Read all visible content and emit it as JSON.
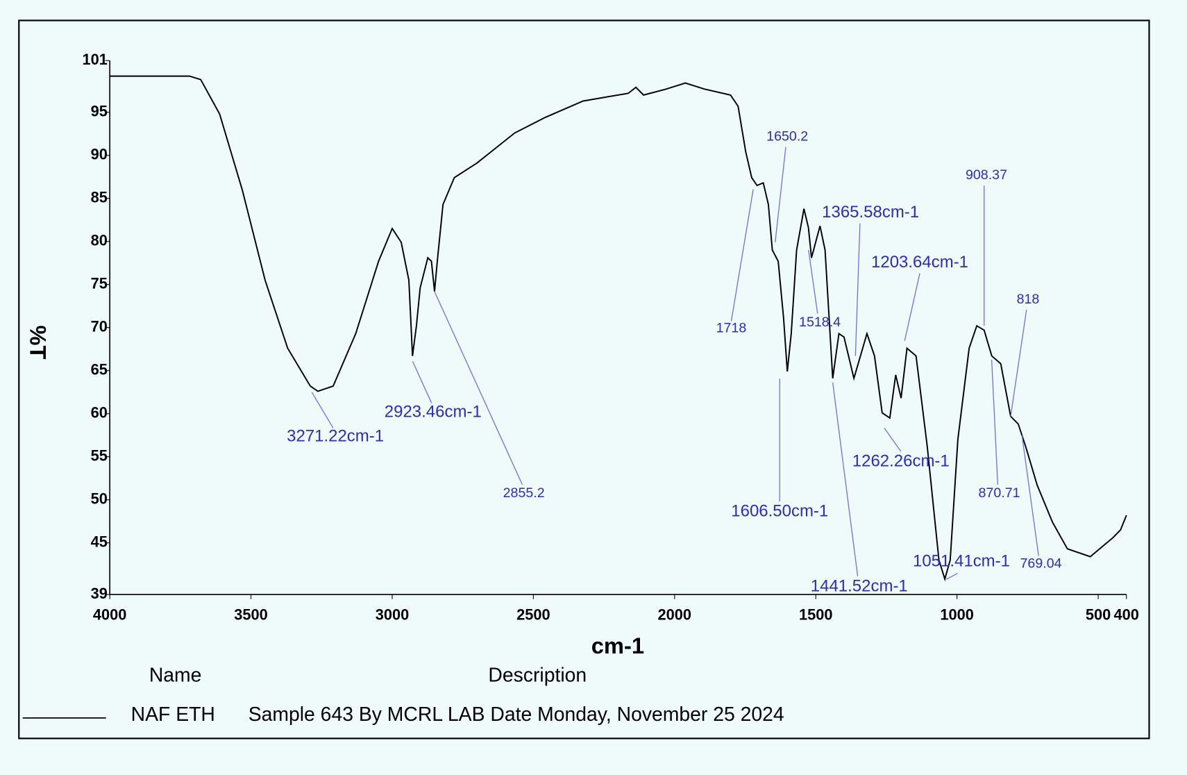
{
  "chart_data": {
    "type": "line",
    "y_label": "%T",
    "x_label": "cm-1",
    "xlim": [
      4000,
      400
    ],
    "ylim": [
      39,
      101
    ],
    "xticks": [
      4000,
      3500,
      3000,
      2500,
      2000,
      1500,
      1000,
      500,
      400
    ],
    "yticks": [
      101,
      95,
      90,
      85,
      80,
      75,
      70,
      65,
      60,
      55,
      50,
      45,
      39
    ],
    "legend_headers": [
      "Name",
      "Description"
    ],
    "series": [
      {
        "name": "NAF ETH",
        "description": "Sample 643 By MCRL LAB Date Monday, November 25 2024",
        "color": "#000000",
        "x": [
          4000,
          3718,
          3678,
          3611,
          3531,
          3450,
          3370,
          3290,
          3263,
          3209,
          3129,
          3048,
          3000,
          2968,
          2941,
          2928,
          2914,
          2901,
          2874,
          2861,
          2850,
          2839,
          2820,
          2780,
          2700,
          2566,
          2458,
          2324,
          2164,
          2137,
          2110,
          2029,
          1962,
          1895,
          1802,
          1775,
          1748,
          1727,
          1708,
          1686,
          1668,
          1654,
          1633,
          1614,
          1601,
          1587,
          1568,
          1542,
          1526,
          1515,
          1485,
          1467,
          1440,
          1418,
          1400,
          1365,
          1319,
          1292,
          1265,
          1238,
          1217,
          1198,
          1177,
          1145,
          1105,
          1064,
          1043,
          1024,
          997,
          957,
          930,
          904,
          877,
          845,
          810,
          783,
          756,
          716,
          662,
          609,
          528,
          448,
          421,
          400
        ],
        "values": [
          99.2,
          99.2,
          98.8,
          94.8,
          86,
          75.5,
          67.6,
          63.2,
          62.6,
          63.2,
          69.3,
          77.7,
          81.5,
          79.9,
          75.5,
          66.7,
          70.2,
          74.6,
          78.1,
          77.7,
          74.2,
          78.1,
          84.3,
          87.4,
          89.1,
          92.6,
          94.4,
          96.3,
          97.2,
          97.9,
          97.0,
          97.7,
          98.4,
          97.7,
          97.0,
          95.7,
          90.4,
          87.4,
          86.5,
          86.8,
          84.3,
          79.0,
          77.7,
          71.1,
          64.9,
          69.3,
          79.0,
          83.8,
          81.6,
          78.1,
          81.8,
          79.0,
          64.1,
          69.3,
          68.9,
          64.1,
          69.3,
          66.7,
          60.1,
          59.5,
          64.5,
          61.8,
          67.6,
          66.7,
          56.1,
          43.0,
          40.8,
          43.0,
          57.0,
          67.6,
          70.2,
          69.7,
          66.7,
          65.8,
          59.7,
          58.8,
          56.1,
          51.7,
          47.4,
          44.3,
          43.4,
          45.6,
          46.5,
          48.2
        ]
      }
    ],
    "annotations": [
      "3271.22cm-1",
      "2923.46cm-1",
      "2855.2",
      "1718",
      "1650.2",
      "1606.50cm-1",
      "1518.4",
      "1365.58cm-1",
      "1203.64cm-1",
      "1441.52cm-1",
      "1262.26cm-1",
      "1051.41cm-1",
      "908.37",
      "870.71",
      "818",
      "769.04"
    ]
  }
}
